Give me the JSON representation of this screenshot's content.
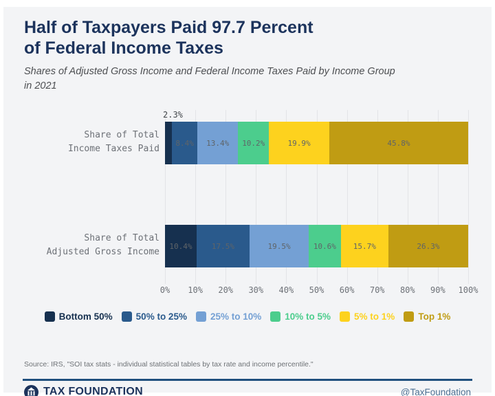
{
  "header": {
    "title_lines": [
      "Half of Taxpayers Paid 97.7 Percent",
      "of Federal Income Taxes"
    ],
    "subtitle_lines": [
      "Shares of Adjusted Gross Income and Federal Income Taxes Paid by Income Group",
      "in 2021"
    ]
  },
  "chart_data": {
    "type": "bar",
    "orientation": "horizontal-stacked",
    "title": "Half of Taxpayers Paid 97.7 Percent of Federal Income Taxes",
    "subtitle": "Shares of Adjusted Gross Income and Federal Income Taxes Paid by Income Group in 2021",
    "categories": [
      "Share of Total Income Taxes Paid",
      "Share of Total Adjusted Gross Income"
    ],
    "rows": [
      {
        "label_lines": [
          "Share of Total",
          "Income Taxes Paid"
        ],
        "values": [
          2.3,
          8.4,
          13.4,
          10.2,
          19.9,
          45.8
        ],
        "value_labels": [
          "2.3%",
          "8.4%",
          "13.4%",
          "10.2%",
          "19.9%",
          "45.8%"
        ],
        "outside_label": {
          "segment_index": 0,
          "text": "2.3%"
        }
      },
      {
        "label_lines": [
          "Share of Total",
          "Adjusted Gross Income"
        ],
        "values": [
          10.4,
          17.5,
          19.5,
          10.6,
          15.7,
          26.3
        ],
        "value_labels": [
          "10.4%",
          "17.5%",
          "19.5%",
          "10.6%",
          "15.7%",
          "26.3%"
        ]
      }
    ],
    "series": [
      {
        "name": "Bottom 50%",
        "color": "#16304f"
      },
      {
        "name": "50% to 25%",
        "color": "#2a5a8c"
      },
      {
        "name": "25% to 10%",
        "color": "#74a0d4"
      },
      {
        "name": "10% to 5%",
        "color": "#4ccd8d"
      },
      {
        "name": "5% to 1%",
        "color": "#fdd21e"
      },
      {
        "name": "Top 1%",
        "color": "#c09c13"
      }
    ],
    "x_ticks": [
      "0%",
      "10%",
      "20%",
      "30%",
      "40%",
      "50%",
      "60%",
      "70%",
      "80%",
      "90%",
      "100%"
    ],
    "xlim": [
      0,
      100
    ],
    "grid": true,
    "legend_position": "bottom"
  },
  "source": "Source: IRS, \"SOI tax stats - individual statistical tables by tax rate and income percentile.\"",
  "footer": {
    "brand": "TAX FOUNDATION",
    "handle": "@TaxFoundation"
  },
  "colors": {
    "card_background": "#f3f4f6",
    "title": "#1c335c",
    "gridline": "#e3e4e7",
    "footer_rule": "#20507e",
    "inner_value_label": "#5f6468"
  }
}
